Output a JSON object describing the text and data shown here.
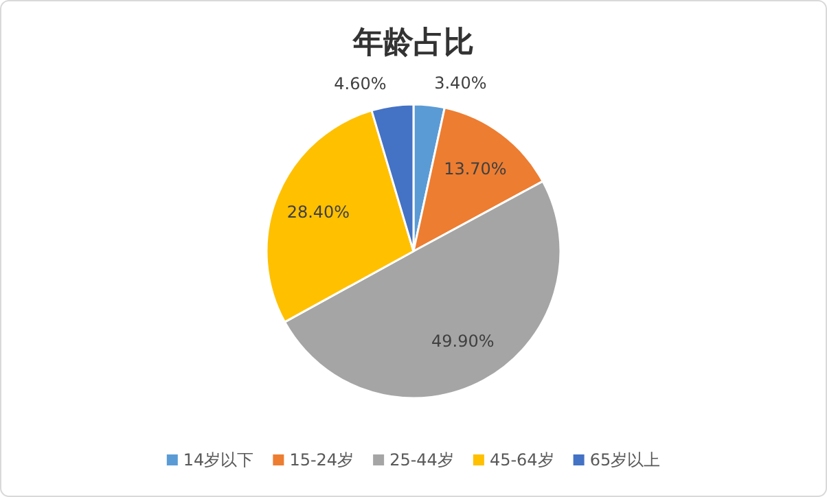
{
  "chart_data": {
    "type": "pie",
    "title": "年龄占比",
    "categories": [
      "14岁以下",
      "15-24岁",
      "25-44岁",
      "45-64岁",
      "65岁以上"
    ],
    "values": [
      3.4,
      13.7,
      49.9,
      28.4,
      4.6
    ],
    "colors": [
      "#5b9bd5",
      "#ed7d31",
      "#a5a5a5",
      "#ffc000",
      "#4472c4"
    ],
    "value_labels": [
      "3.40%",
      "13.70%",
      "49.90%",
      "28.40%",
      "4.60%"
    ],
    "legend": "bottom"
  }
}
